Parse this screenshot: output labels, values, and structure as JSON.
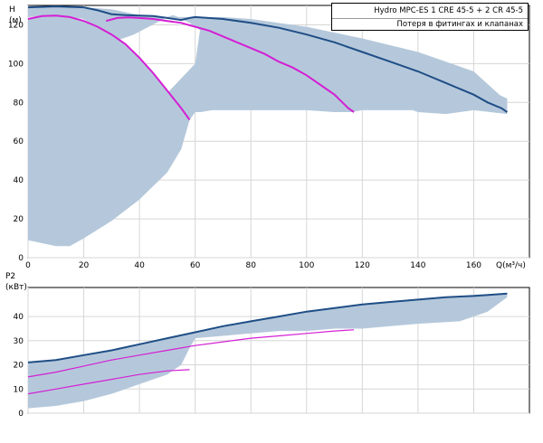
{
  "legend": {
    "title": "Hydro MPC-ES 1 CRE 45-5  +  2 CR 45-5",
    "subtitle": "Потеря в фитингах и клапанах"
  },
  "colors": {
    "envelope_fill": "#b5c8db",
    "max_curve": "#1f4e86",
    "pump_curves": "#d41fd4",
    "axis": "#000000",
    "grid": "#d6d6d6"
  },
  "chart_data": [
    {
      "type": "line",
      "name": "head",
      "ylabel": "H\n(м)",
      "xlabel": "Q(м³/ч)",
      "xlim": [
        0,
        180
      ],
      "ylim": [
        0,
        130
      ],
      "xticks": [
        0,
        20,
        40,
        60,
        80,
        100,
        120,
        140,
        160
      ],
      "yticks": [
        0,
        20,
        40,
        60,
        80,
        100,
        120
      ],
      "grid": true,
      "envelope": [
        [
          0,
          129
        ],
        [
          10,
          129
        ],
        [
          20,
          129
        ],
        [
          30,
          128
        ],
        [
          40,
          125
        ],
        [
          50,
          124
        ],
        [
          55,
          123
        ],
        [
          58,
          121
        ],
        [
          60,
          119
        ],
        [
          62,
          117
        ],
        [
          63,
          116
        ],
        [
          66,
          113
        ],
        [
          68,
          111
        ],
        [
          70,
          109
        ],
        [
          72,
          107
        ],
        [
          74,
          105
        ],
        [
          76,
          103
        ],
        [
          78,
          101
        ],
        [
          80,
          99
        ],
        [
          82,
          97
        ],
        [
          84,
          96
        ],
        [
          86,
          95
        ],
        [
          88,
          94
        ],
        [
          90,
          93
        ],
        [
          92,
          92
        ],
        [
          94,
          91
        ],
        [
          96,
          91
        ],
        [
          98,
          90
        ],
        [
          100,
          89
        ],
        [
          104,
          88
        ],
        [
          108,
          87
        ],
        [
          112,
          86
        ],
        [
          116,
          85
        ],
        [
          120,
          83
        ],
        [
          130,
          80
        ],
        [
          140,
          75
        ],
        [
          150,
          74
        ],
        [
          160,
          76
        ],
        [
          172,
          74
        ],
        [
          172,
          82
        ],
        [
          170,
          83
        ],
        [
          160,
          96
        ],
        [
          140,
          106
        ],
        [
          120,
          113
        ],
        [
          100,
          119
        ],
        [
          90,
          121
        ],
        [
          80,
          123
        ],
        [
          70,
          124
        ],
        [
          60,
          124
        ],
        [
          58,
          124
        ],
        [
          54,
          124
        ],
        [
          52,
          125
        ],
        [
          50,
          124
        ],
        [
          46,
          121
        ],
        [
          42,
          118
        ],
        [
          38,
          115
        ],
        [
          34,
          113
        ],
        [
          32,
          112
        ],
        [
          30,
          111
        ],
        [
          28,
          111
        ],
        [
          22,
          121
        ],
        [
          20,
          123
        ],
        [
          15,
          124
        ],
        [
          10,
          125
        ],
        [
          0,
          124
        ]
      ],
      "envelope_lower": [
        [
          0,
          9
        ],
        [
          10,
          6
        ],
        [
          15,
          6
        ],
        [
          20,
          10
        ],
        [
          30,
          19
        ],
        [
          40,
          30
        ],
        [
          50,
          44
        ],
        [
          55,
          56
        ],
        [
          58,
          71
        ],
        [
          60,
          75
        ],
        [
          62,
          75
        ],
        [
          66,
          76
        ],
        [
          70,
          76
        ],
        [
          80,
          76
        ],
        [
          90,
          76
        ],
        [
          100,
          76
        ],
        [
          110,
          75
        ],
        [
          116,
          75
        ],
        [
          120,
          76
        ],
        [
          130,
          76
        ],
        [
          140,
          76
        ],
        [
          150,
          75
        ],
        [
          160,
          76
        ],
        [
          172,
          75
        ]
      ],
      "series": [
        {
          "name": "max",
          "points": [
            [
              0,
              129
            ],
            [
              10,
              129.5
            ],
            [
              20,
              129
            ],
            [
              25,
              127.5
            ],
            [
              30,
              125.5
            ],
            [
              35,
              125
            ],
            [
              40,
              124.8
            ],
            [
              45,
              124.5
            ],
            [
              50,
              123.5
            ],
            [
              55,
              122.5
            ],
            [
              58,
              123.5
            ],
            [
              60,
              124
            ],
            [
              70,
              123
            ],
            [
              80,
              121
            ],
            [
              90,
              118.5
            ],
            [
              100,
              115
            ],
            [
              110,
              111
            ],
            [
              120,
              106
            ],
            [
              130,
              101
            ],
            [
              140,
              96
            ],
            [
              150,
              90
            ],
            [
              160,
              84
            ],
            [
              165,
              80
            ],
            [
              170,
              77
            ],
            [
              172,
              75
            ]
          ]
        },
        {
          "name": "pump-1",
          "points": [
            [
              0,
              123
            ],
            [
              5,
              124.5
            ],
            [
              10,
              124.8
            ],
            [
              15,
              124
            ],
            [
              20,
              122
            ],
            [
              25,
              119
            ],
            [
              30,
              115
            ],
            [
              35,
              110
            ],
            [
              40,
              103
            ],
            [
              45,
              95
            ],
            [
              50,
              86
            ],
            [
              55,
              77
            ],
            [
              58,
              71
            ]
          ]
        },
        {
          "name": "pump-2",
          "points": [
            [
              28,
              122
            ],
            [
              32,
              123.5
            ],
            [
              36,
              123.8
            ],
            [
              40,
              123.5
            ],
            [
              45,
              123
            ],
            [
              50,
              122
            ],
            [
              55,
              121
            ],
            [
              60,
              119
            ],
            [
              65,
              117
            ],
            [
              70,
              114
            ],
            [
              75,
              111
            ],
            [
              80,
              108
            ],
            [
              85,
              105
            ],
            [
              90,
              101
            ],
            [
              95,
              98
            ],
            [
              100,
              94
            ],
            [
              105,
              89
            ],
            [
              110,
              84
            ],
            [
              115,
              77
            ],
            [
              117,
              75
            ]
          ]
        }
      ]
    },
    {
      "type": "line",
      "name": "power",
      "ylabel": "P2\n(кВт)",
      "xlim": [
        0,
        180
      ],
      "ylim": [
        0,
        52
      ],
      "yticks": [
        0,
        10,
        20,
        30,
        40
      ],
      "grid": true,
      "envelope": [
        [
          0,
          21
        ],
        [
          10,
          22
        ],
        [
          20,
          24
        ],
        [
          30,
          26
        ],
        [
          40,
          28.5
        ],
        [
          50,
          31
        ],
        [
          60,
          33.5
        ],
        [
          70,
          36
        ],
        [
          80,
          38
        ],
        [
          90,
          40
        ],
        [
          100,
          42
        ],
        [
          110,
          43.5
        ],
        [
          120,
          45
        ],
        [
          130,
          46
        ],
        [
          140,
          47
        ],
        [
          150,
          48
        ],
        [
          160,
          49
        ],
        [
          172,
          49.5
        ],
        [
          172,
          48
        ],
        [
          165,
          42
        ],
        [
          155,
          38
        ],
        [
          140,
          37
        ],
        [
          130,
          36
        ],
        [
          120,
          35
        ],
        [
          110,
          35
        ],
        [
          100,
          34
        ],
        [
          90,
          34
        ],
        [
          80,
          33
        ],
        [
          70,
          32
        ],
        [
          60,
          31
        ],
        [
          58,
          27
        ],
        [
          55,
          20
        ],
        [
          50,
          16
        ],
        [
          40,
          12
        ],
        [
          30,
          8
        ],
        [
          20,
          5
        ],
        [
          10,
          3
        ],
        [
          0,
          2
        ]
      ],
      "series": [
        {
          "name": "max",
          "points": [
            [
              0,
              21
            ],
            [
              10,
              22
            ],
            [
              20,
              24
            ],
            [
              30,
              26
            ],
            [
              40,
              28.5
            ],
            [
              50,
              31
            ],
            [
              60,
              33.5
            ],
            [
              70,
              36
            ],
            [
              80,
              38
            ],
            [
              90,
              40
            ],
            [
              100,
              42
            ],
            [
              110,
              43.5
            ],
            [
              120,
              45
            ],
            [
              130,
              46
            ],
            [
              140,
              47
            ],
            [
              150,
              48
            ],
            [
              160,
              48.5
            ],
            [
              172,
              49.5
            ]
          ]
        },
        {
          "name": "pump-1",
          "points": [
            [
              0,
              8
            ],
            [
              10,
              10
            ],
            [
              20,
              12
            ],
            [
              30,
              14
            ],
            [
              40,
              16
            ],
            [
              50,
              17.5
            ],
            [
              58,
              18
            ]
          ]
        },
        {
          "name": "pump-2",
          "points": [
            [
              0,
              15
            ],
            [
              10,
              17
            ],
            [
              20,
              19.5
            ],
            [
              30,
              22
            ],
            [
              40,
              24
            ],
            [
              50,
              26
            ],
            [
              60,
              28
            ],
            [
              70,
              29.5
            ],
            [
              80,
              31
            ],
            [
              90,
              32
            ],
            [
              100,
              33
            ],
            [
              110,
              34
            ],
            [
              117,
              34.5
            ]
          ]
        }
      ]
    }
  ]
}
